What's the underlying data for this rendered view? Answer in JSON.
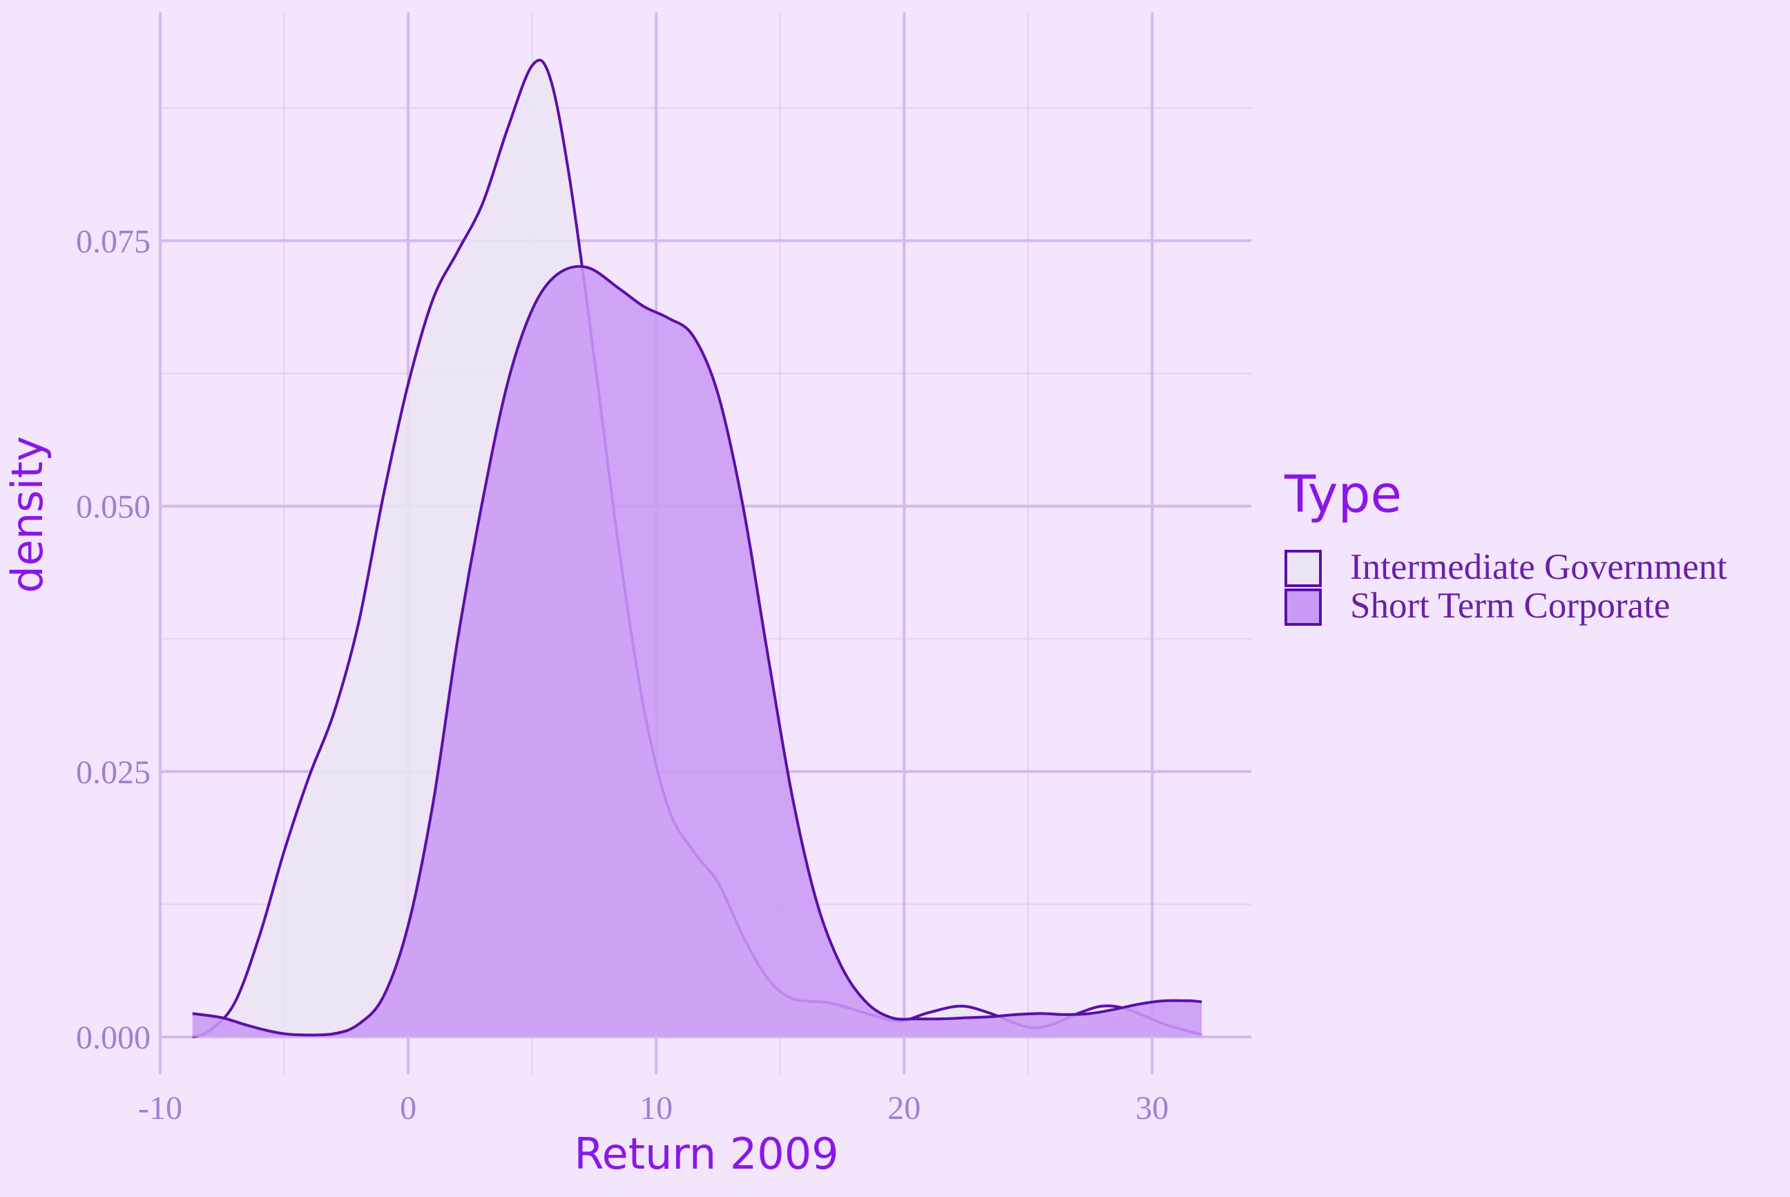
{
  "chart_data": {
    "type": "area",
    "xlabel": "Return 2009",
    "ylabel": "density",
    "xlim": [
      -10,
      34
    ],
    "ylim": [
      -0.0035,
      0.0965
    ],
    "x_ticks": [
      -10,
      0,
      10,
      20,
      30
    ],
    "x_tick_labels": [
      "-10",
      "0",
      "10",
      "20",
      "30"
    ],
    "y_ticks": [
      0,
      0.025,
      0.05,
      0.075
    ],
    "y_tick_labels": [
      "0.000",
      "0.025",
      "0.050",
      "0.075"
    ],
    "grid": true,
    "legend": {
      "title": "Type",
      "position": "right"
    },
    "series": [
      {
        "name": "Intermediate Government",
        "fill": "#ece4f4",
        "stroke": "#5b0fa8",
        "points": [
          [
            -8.7,
            0.0
          ],
          [
            -8.0,
            0.0006
          ],
          [
            -7.0,
            0.0032
          ],
          [
            -6.0,
            0.0095
          ],
          [
            -5.0,
            0.0175
          ],
          [
            -4.0,
            0.0245
          ],
          [
            -3.0,
            0.0305
          ],
          [
            -2.0,
            0.039
          ],
          [
            -1.0,
            0.051
          ],
          [
            0.0,
            0.0615
          ],
          [
            1.0,
            0.0695
          ],
          [
            2.0,
            0.074
          ],
          [
            3.0,
            0.0785
          ],
          [
            4.0,
            0.0855
          ],
          [
            5.0,
            0.0915
          ],
          [
            5.7,
            0.0905
          ],
          [
            6.5,
            0.081
          ],
          [
            7.5,
            0.064
          ],
          [
            8.5,
            0.046
          ],
          [
            9.5,
            0.031
          ],
          [
            10.5,
            0.0215
          ],
          [
            11.5,
            0.0175
          ],
          [
            12.5,
            0.0145
          ],
          [
            13.5,
            0.0095
          ],
          [
            14.5,
            0.0055
          ],
          [
            15.5,
            0.0036
          ],
          [
            17.0,
            0.0032
          ],
          [
            18.5,
            0.0022
          ],
          [
            19.8,
            0.0015
          ],
          [
            21.0,
            0.0023
          ],
          [
            22.3,
            0.0029
          ],
          [
            23.5,
            0.0022
          ],
          [
            25.0,
            0.0009
          ],
          [
            26.0,
            0.0012
          ],
          [
            27.0,
            0.0022
          ],
          [
            28.0,
            0.0029
          ],
          [
            29.0,
            0.0026
          ],
          [
            30.5,
            0.0012
          ],
          [
            32.0,
            0.0002
          ]
        ]
      },
      {
        "name": "Short Term Corporate",
        "fill": "#c99af5",
        "stroke": "#5b0fa8",
        "points": [
          [
            -8.7,
            0.0022
          ],
          [
            -7.5,
            0.0018
          ],
          [
            -6.5,
            0.0011
          ],
          [
            -5.5,
            0.0005
          ],
          [
            -4.5,
            0.0002
          ],
          [
            -3.0,
            0.0003
          ],
          [
            -2.0,
            0.0012
          ],
          [
            -1.0,
            0.0038
          ],
          [
            0.0,
            0.0105
          ],
          [
            1.0,
            0.022
          ],
          [
            2.0,
            0.0375
          ],
          [
            3.0,
            0.0505
          ],
          [
            4.0,
            0.0615
          ],
          [
            5.0,
            0.0685
          ],
          [
            6.0,
            0.0718
          ],
          [
            7.2,
            0.0725
          ],
          [
            8.5,
            0.0705
          ],
          [
            9.5,
            0.0688
          ],
          [
            10.5,
            0.0677
          ],
          [
            11.5,
            0.066
          ],
          [
            12.5,
            0.0605
          ],
          [
            13.5,
            0.05
          ],
          [
            14.5,
            0.036
          ],
          [
            15.5,
            0.0225
          ],
          [
            16.5,
            0.0125
          ],
          [
            17.5,
            0.0065
          ],
          [
            18.5,
            0.0032
          ],
          [
            19.5,
            0.0018
          ],
          [
            20.5,
            0.0017
          ],
          [
            21.5,
            0.0017
          ],
          [
            22.5,
            0.0018
          ],
          [
            23.5,
            0.0019
          ],
          [
            24.5,
            0.0021
          ],
          [
            25.5,
            0.0022
          ],
          [
            26.5,
            0.0021
          ],
          [
            27.5,
            0.0022
          ],
          [
            28.5,
            0.0026
          ],
          [
            29.5,
            0.0031
          ],
          [
            30.5,
            0.0034
          ],
          [
            31.5,
            0.0034
          ],
          [
            32.0,
            0.0033
          ]
        ]
      }
    ]
  }
}
